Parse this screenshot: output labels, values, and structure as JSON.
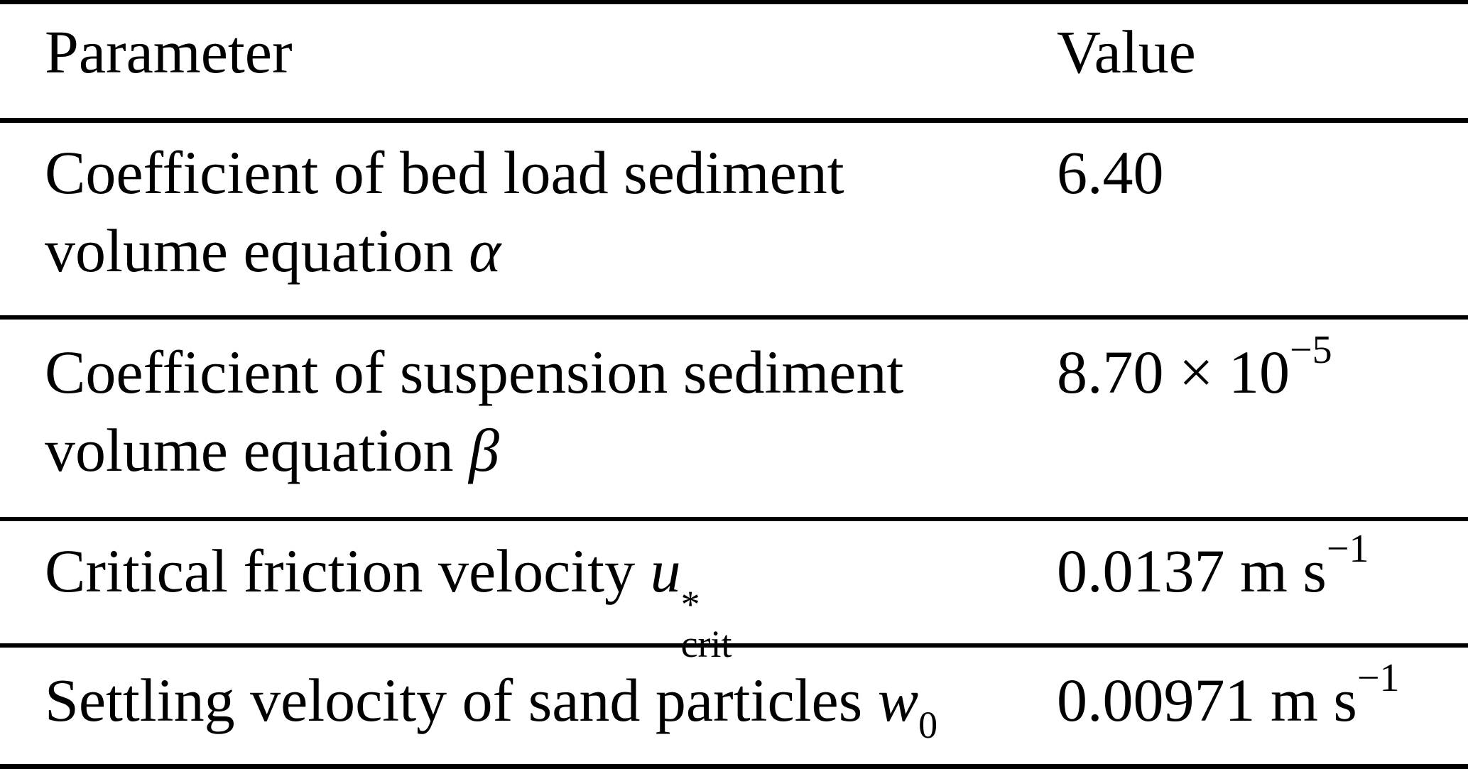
{
  "table": {
    "header": {
      "param": "Parameter",
      "value": "Value"
    },
    "rows": [
      {
        "param": {
          "line1": "Coefficient of bed load sediment",
          "line2_text": "volume equation ",
          "symbol": "α"
        },
        "value": {
          "text": "6.40"
        }
      },
      {
        "param": {
          "line1": "Coefficient of suspension sediment",
          "line2_text": "volume equation ",
          "symbol": "β"
        },
        "value": {
          "mantissa": "8.70 × 10",
          "exponent": "−5"
        }
      },
      {
        "param": {
          "text": "Critical friction velocity ",
          "symbol_base": "u",
          "symbol_sup": "*",
          "symbol_sub": "crit"
        },
        "value": {
          "number_unit": "0.0137 m s",
          "exponent": "−1"
        }
      },
      {
        "param": {
          "text": "Settling velocity of sand particles ",
          "symbol_base": "w",
          "symbol_sub": "0"
        },
        "value": {
          "number_unit": "0.00971 m s",
          "exponent": "−1"
        }
      }
    ]
  }
}
